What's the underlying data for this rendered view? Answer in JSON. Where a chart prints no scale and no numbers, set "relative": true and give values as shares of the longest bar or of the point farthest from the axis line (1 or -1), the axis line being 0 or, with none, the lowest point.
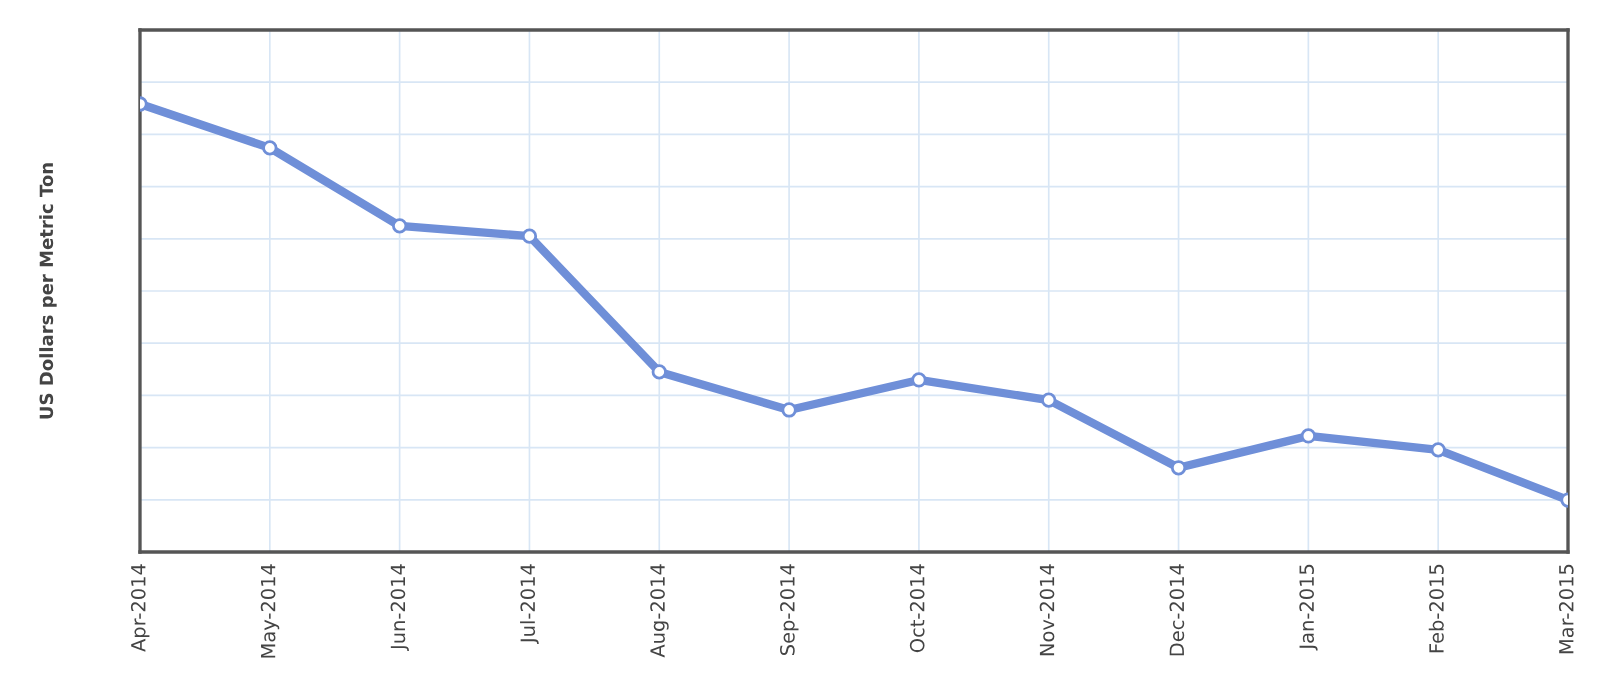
{
  "chart_data": {
    "type": "line",
    "ylabel": "US Dollars per Metric Ton",
    "relative": true,
    "categories": [
      "Apr-2014",
      "May-2014",
      "Jun-2014",
      "Jul-2014",
      "Aug-2014",
      "Sep-2014",
      "Oct-2014",
      "Nov-2014",
      "Dec-2014",
      "Jan-2015",
      "Feb-2015",
      "Mar-2015"
    ],
    "series": [
      {
        "color": "#6f8fd8",
        "values": [
          1,
          0.902,
          0.728,
          0.705,
          0.402,
          0.317,
          0.384,
          0.339,
          0.188,
          0.259,
          0.228,
          0.116
        ]
      }
    ],
    "grid": true,
    "marker": "circle",
    "line_style": "solid"
  }
}
